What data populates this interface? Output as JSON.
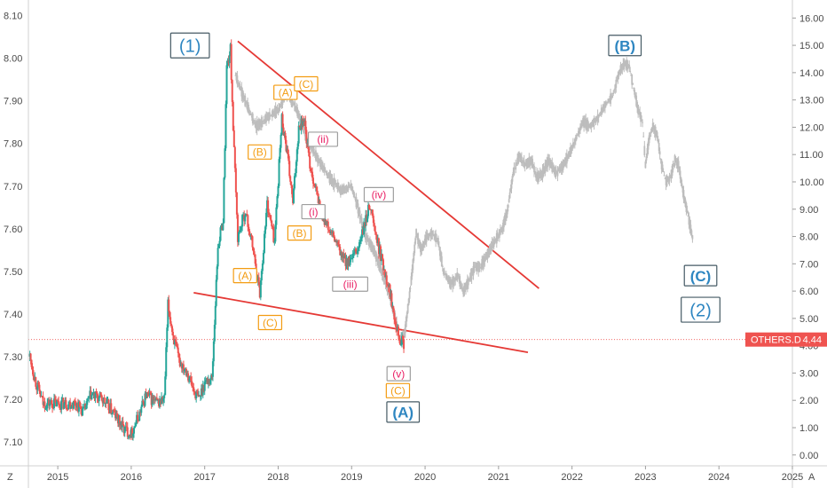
{
  "chart_data": {
    "type": "line",
    "left_axis": {
      "ticks": [
        "8.10",
        "8.00",
        "7.90",
        "7.80",
        "7.70",
        "7.60",
        "7.50",
        "7.40",
        "7.30",
        "7.20",
        "7.10"
      ],
      "range": [
        7.05,
        8.12
      ]
    },
    "right_axis": {
      "ticks": [
        "16.00",
        "15.00",
        "14.00",
        "13.00",
        "12.00",
        "11.00",
        "10.00",
        "9.00",
        "8.00",
        "7.00",
        "6.00",
        "5.00",
        "4.00",
        "3.00",
        "2.00",
        "1.00",
        "0.00"
      ],
      "range": [
        -0.3,
        16.4
      ]
    },
    "x_axis": {
      "ticks": [
        "2015",
        "2016",
        "2017",
        "2018",
        "2019",
        "2020",
        "2021",
        "2022",
        "2023",
        "2024",
        "2025"
      ],
      "tick_values": [
        2015,
        2016,
        2017,
        2018,
        2019,
        2020,
        2021,
        2022,
        2023,
        2024,
        2025
      ],
      "range": [
        2014.6,
        2025.0
      ]
    },
    "series": [
      {
        "role": "candles-left-scale",
        "colors": {
          "up": "#26a69a",
          "down": "#ef5350"
        },
        "points": [
          [
            2014.62,
            7.3
          ],
          [
            2014.7,
            7.24
          ],
          [
            2014.8,
            7.19
          ],
          [
            2014.95,
            7.19
          ],
          [
            2015.1,
            7.19
          ],
          [
            2015.25,
            7.19
          ],
          [
            2015.35,
            7.17
          ],
          [
            2015.45,
            7.21
          ],
          [
            2015.6,
            7.2
          ],
          [
            2015.75,
            7.17
          ],
          [
            2015.9,
            7.13
          ],
          [
            2016.0,
            7.12
          ],
          [
            2016.1,
            7.16
          ],
          [
            2016.2,
            7.21
          ],
          [
            2016.35,
            7.19
          ],
          [
            2016.45,
            7.2
          ],
          [
            2016.5,
            7.42
          ],
          [
            2016.58,
            7.34
          ],
          [
            2016.65,
            7.29
          ],
          [
            2016.75,
            7.27
          ],
          [
            2016.85,
            7.22
          ],
          [
            2016.92,
            7.2
          ],
          [
            2017.0,
            7.24
          ],
          [
            2017.1,
            7.25
          ],
          [
            2017.18,
            7.56
          ],
          [
            2017.25,
            7.62
          ],
          [
            2017.3,
            7.98
          ],
          [
            2017.35,
            8.02
          ],
          [
            2017.4,
            7.78
          ],
          [
            2017.45,
            7.58
          ],
          [
            2017.55,
            7.64
          ],
          [
            2017.65,
            7.56
          ],
          [
            2017.75,
            7.45
          ],
          [
            2017.85,
            7.66
          ],
          [
            2017.95,
            7.57
          ],
          [
            2018.05,
            7.86
          ],
          [
            2018.12,
            7.78
          ],
          [
            2018.2,
            7.66
          ],
          [
            2018.28,
            7.84
          ],
          [
            2018.35,
            7.86
          ],
          [
            2018.42,
            7.76
          ],
          [
            2018.5,
            7.7
          ],
          [
            2018.58,
            7.64
          ],
          [
            2018.68,
            7.6
          ],
          [
            2018.78,
            7.57
          ],
          [
            2018.88,
            7.53
          ],
          [
            2018.98,
            7.52
          ],
          [
            2019.08,
            7.55
          ],
          [
            2019.18,
            7.61
          ],
          [
            2019.25,
            7.66
          ],
          [
            2019.32,
            7.59
          ],
          [
            2019.42,
            7.52
          ],
          [
            2019.5,
            7.47
          ],
          [
            2019.58,
            7.4
          ],
          [
            2019.66,
            7.34
          ],
          [
            2019.71,
            7.33
          ]
        ]
      },
      {
        "role": "grey-price-left-scale",
        "color": "#bdbdbd",
        "points": [
          [
            2017.42,
            7.96
          ],
          [
            2017.55,
            7.9
          ],
          [
            2017.7,
            7.84
          ],
          [
            2017.85,
            7.86
          ],
          [
            2018.0,
            7.88
          ],
          [
            2018.12,
            7.92
          ],
          [
            2018.25,
            7.88
          ],
          [
            2018.4,
            7.81
          ],
          [
            2018.55,
            7.76
          ],
          [
            2018.7,
            7.72
          ],
          [
            2018.85,
            7.69
          ],
          [
            2019.0,
            7.7
          ],
          [
            2019.1,
            7.64
          ],
          [
            2019.2,
            7.58
          ],
          [
            2019.3,
            7.55
          ],
          [
            2019.45,
            7.48
          ],
          [
            2019.58,
            7.4
          ],
          [
            2019.66,
            7.34
          ],
          [
            2019.72,
            7.35
          ],
          [
            2019.8,
            7.46
          ],
          [
            2019.88,
            7.59
          ],
          [
            2019.95,
            7.55
          ],
          [
            2020.02,
            7.58
          ],
          [
            2020.1,
            7.59
          ],
          [
            2020.18,
            7.57
          ],
          [
            2020.25,
            7.5
          ],
          [
            2020.35,
            7.47
          ],
          [
            2020.45,
            7.49
          ],
          [
            2020.52,
            7.45
          ],
          [
            2020.6,
            7.48
          ],
          [
            2020.68,
            7.51
          ],
          [
            2020.75,
            7.51
          ],
          [
            2020.85,
            7.54
          ],
          [
            2020.95,
            7.57
          ],
          [
            2021.05,
            7.6
          ],
          [
            2021.12,
            7.64
          ],
          [
            2021.2,
            7.73
          ],
          [
            2021.28,
            7.77
          ],
          [
            2021.36,
            7.75
          ],
          [
            2021.45,
            7.76
          ],
          [
            2021.52,
            7.72
          ],
          [
            2021.6,
            7.73
          ],
          [
            2021.68,
            7.76
          ],
          [
            2021.78,
            7.73
          ],
          [
            2021.88,
            7.75
          ],
          [
            2021.98,
            7.78
          ],
          [
            2022.05,
            7.81
          ],
          [
            2022.15,
            7.85
          ],
          [
            2022.25,
            7.84
          ],
          [
            2022.35,
            7.86
          ],
          [
            2022.45,
            7.89
          ],
          [
            2022.55,
            7.91
          ],
          [
            2022.65,
            7.97
          ],
          [
            2022.72,
            7.99
          ],
          [
            2022.78,
            7.98
          ],
          [
            2022.84,
            7.93
          ],
          [
            2022.9,
            7.88
          ],
          [
            2022.96,
            7.85
          ],
          [
            2023.0,
            7.75
          ],
          [
            2023.05,
            7.81
          ],
          [
            2023.1,
            7.84
          ],
          [
            2023.16,
            7.82
          ],
          [
            2023.22,
            7.75
          ],
          [
            2023.28,
            7.71
          ],
          [
            2023.34,
            7.72
          ],
          [
            2023.4,
            7.76
          ],
          [
            2023.45,
            7.75
          ],
          [
            2023.52,
            7.68
          ],
          [
            2023.58,
            7.63
          ],
          [
            2023.64,
            7.58
          ]
        ]
      }
    ],
    "trend_lines": [
      {
        "from": [
          2017.45,
          8.04
        ],
        "to": [
          2021.55,
          7.46
        ],
        "color": "#e53935"
      },
      {
        "from": [
          2016.85,
          7.45
        ],
        "to": [
          2021.4,
          7.31
        ],
        "color": "#e53935"
      }
    ],
    "reference_line": {
      "y": 7.34,
      "style": "dotted",
      "color": "#ef5350"
    },
    "price_tag": {
      "symbol": "OTHERS.D",
      "value": "4.44",
      "y": 7.34
    },
    "wave_labels": [
      {
        "text": "(1)",
        "x": 2016.8,
        "y": 8.03,
        "style": "big-frame"
      },
      {
        "text": "(A)",
        "x": 2018.1,
        "y": 7.92,
        "style": "orange"
      },
      {
        "text": "(C)",
        "x": 2018.38,
        "y": 7.94,
        "style": "orange"
      },
      {
        "text": "(B)",
        "x": 2017.75,
        "y": 7.78,
        "style": "orange"
      },
      {
        "text": "(ii)",
        "x": 2018.61,
        "y": 7.81,
        "style": "magenta"
      },
      {
        "text": "(i)",
        "x": 2018.48,
        "y": 7.64,
        "style": "magenta"
      },
      {
        "text": "(iv)",
        "x": 2019.37,
        "y": 7.68,
        "style": "magenta"
      },
      {
        "text": "(B)",
        "x": 2018.29,
        "y": 7.59,
        "style": "orange"
      },
      {
        "text": "(A)",
        "x": 2017.55,
        "y": 7.49,
        "style": "orange"
      },
      {
        "text": "(iii)",
        "x": 2018.98,
        "y": 7.47,
        "style": "magenta"
      },
      {
        "text": "(C)",
        "x": 2017.89,
        "y": 7.38,
        "style": "orange"
      },
      {
        "text": "(v)",
        "x": 2019.64,
        "y": 7.26,
        "style": "magenta"
      },
      {
        "text": "(C)",
        "x": 2019.63,
        "y": 7.22,
        "style": "orange"
      },
      {
        "text": "(A)",
        "x": 2019.7,
        "y": 7.17,
        "style": "blue-bold"
      },
      {
        "text": "(B)",
        "x": 2022.72,
        "y": 8.03,
        "style": "blue-bold"
      },
      {
        "text": "(C)",
        "x": 2023.75,
        "y": 7.49,
        "style": "blue-bold"
      },
      {
        "text": "(2)",
        "x": 2023.75,
        "y": 7.41,
        "style": "big-frame"
      }
    ],
    "colors": {
      "up": "#26a69a",
      "down": "#ef5350",
      "grey": "#bdbdbd",
      "trend": "#e53935",
      "orange": "#f39c12",
      "magenta": "#e91e63",
      "blue": "#2e86c1",
      "frame": "#455a64"
    }
  },
  "corner_left": "Z",
  "corner_right": "A"
}
